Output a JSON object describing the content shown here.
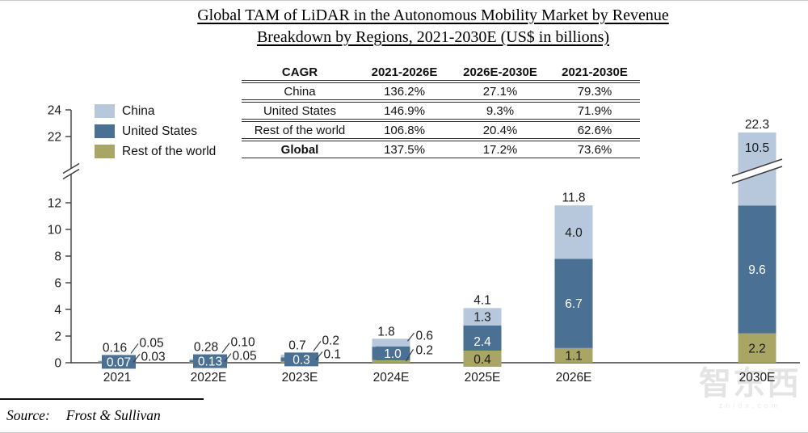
{
  "title": {
    "line1": "Global TAM of LiDAR in the Autonomous Mobility Market by Revenue",
    "line2": "Breakdown by Regions, 2021-2030E (US$ in billions)"
  },
  "cagr_table": {
    "headers": [
      "CAGR",
      "2021-2026E",
      "2026E-2030E",
      "2021-2030E"
    ],
    "rows": [
      {
        "label": "China",
        "values": [
          "136.2%",
          "27.1%",
          "79.3%"
        ]
      },
      {
        "label": "United States",
        "values": [
          "146.9%",
          "9.3%",
          "71.9%"
        ]
      },
      {
        "label": "Rest of the world",
        "values": [
          "106.8%",
          "20.4%",
          "62.6%"
        ]
      },
      {
        "label": "Global",
        "values": [
          "137.5%",
          "17.2%",
          "73.6%"
        ]
      }
    ]
  },
  "chart_data": {
    "type": "bar",
    "stacked": true,
    "title": "Global TAM of LiDAR in the Autonomous Mobility Market by Revenue Breakdown by Regions, 2021-2030E (US$ in billions)",
    "xlabel": "",
    "ylabel": "US$ in billions",
    "categories": [
      "2021",
      "2022E",
      "2023E",
      "2024E",
      "2025E",
      "2026E",
      "2030E"
    ],
    "series": [
      {
        "name": "China",
        "color": "#b7c8dd",
        "values": [
          0.05,
          0.1,
          0.2,
          0.6,
          1.3,
          4.0,
          10.5
        ],
        "labels": [
          "0.05",
          "0.10",
          "0.2",
          "0.6",
          "1.3",
          "4.0",
          "10.5"
        ]
      },
      {
        "name": "United States",
        "color": "#4a7093",
        "values": [
          0.07,
          0.13,
          0.3,
          1.0,
          2.4,
          6.7,
          9.6
        ],
        "labels": [
          "0.07",
          "0.13",
          "0.3",
          "1.0",
          "2.4",
          "6.7",
          "9.6"
        ]
      },
      {
        "name": "Rest of the world",
        "color": "#a9a565",
        "values": [
          0.03,
          0.05,
          0.1,
          0.2,
          0.4,
          1.1,
          2.2
        ],
        "labels": [
          "0.03",
          "0.05",
          "0.1",
          "0.2",
          "0.4",
          "1.1",
          "2.2"
        ]
      }
    ],
    "totals": [
      0.16,
      0.28,
      0.7,
      1.8,
      4.1,
      11.8,
      22.3
    ],
    "total_labels": [
      "0.16",
      "0.28",
      "0.7",
      "1.8",
      "4.1",
      "11.8",
      "22.3"
    ],
    "y_ticks_lower": [
      0,
      2,
      4,
      6,
      8,
      10,
      12
    ],
    "y_ticks_upper": [
      22,
      24
    ],
    "y_break": {
      "from": 12,
      "to": 22
    },
    "ylim": [
      0,
      24
    ],
    "grid": false,
    "legend_position": "top-left"
  },
  "footer": {
    "source_prefix": "Source:",
    "source_value": "Frost & Sullivan"
  },
  "watermark": {
    "text": "智东西",
    "subtext": "zhidx.com"
  }
}
